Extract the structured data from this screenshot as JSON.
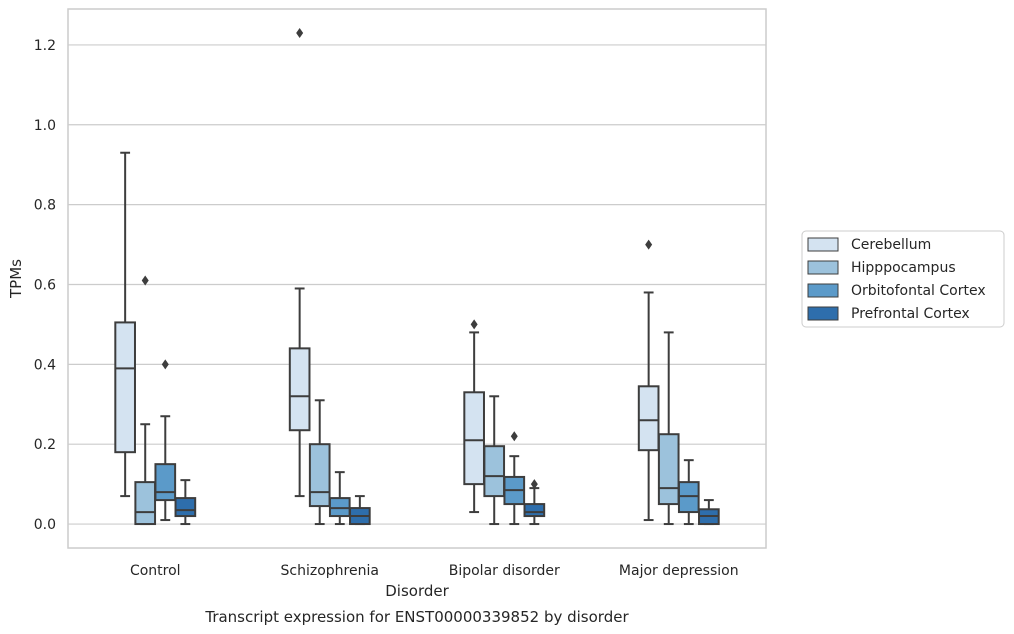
{
  "chart_data": {
    "type": "box",
    "caption": "Transcript expression for ENST00000339852 by disorder",
    "xlabel": "Disorder",
    "ylabel": "TPMs",
    "ylim": [
      -0.06,
      1.29
    ],
    "yticks": [
      "0.0",
      "0.2",
      "0.4",
      "0.6",
      "0.8",
      "1.0",
      "1.2"
    ],
    "ytick_values": [
      0.0,
      0.2,
      0.4,
      0.6,
      0.8,
      1.0,
      1.2
    ],
    "grid": "horizontal",
    "legend_position": "right",
    "categories": [
      "Control",
      "Schizophrenia",
      "Bipolar disorder",
      "Major depression"
    ],
    "series": [
      {
        "name": "Cerebellum",
        "color": "#d4e3f1",
        "boxes": [
          {
            "whislo": 0.07,
            "q1": 0.18,
            "med": 0.39,
            "q3": 0.505,
            "whishi": 0.93,
            "fliers": []
          },
          {
            "whislo": 0.07,
            "q1": 0.235,
            "med": 0.32,
            "q3": 0.44,
            "whishi": 0.59,
            "fliers": [
              1.23
            ]
          },
          {
            "whislo": 0.03,
            "q1": 0.1,
            "med": 0.21,
            "q3": 0.33,
            "whishi": 0.48,
            "fliers": [
              0.5
            ]
          },
          {
            "whislo": 0.01,
            "q1": 0.185,
            "med": 0.26,
            "q3": 0.345,
            "whishi": 0.58,
            "fliers": [
              0.7
            ]
          }
        ]
      },
      {
        "name": "Hipppocampus",
        "color": "#9cc2dc",
        "boxes": [
          {
            "whislo": 0.0,
            "q1": 0.0,
            "med": 0.03,
            "q3": 0.105,
            "whishi": 0.25,
            "fliers": [
              0.61
            ]
          },
          {
            "whislo": 0.0,
            "q1": 0.045,
            "med": 0.08,
            "q3": 0.2,
            "whishi": 0.31,
            "fliers": []
          },
          {
            "whislo": 0.0,
            "q1": 0.07,
            "med": 0.12,
            "q3": 0.195,
            "whishi": 0.32,
            "fliers": []
          },
          {
            "whislo": 0.0,
            "q1": 0.05,
            "med": 0.09,
            "q3": 0.225,
            "whishi": 0.48,
            "fliers": []
          }
        ]
      },
      {
        "name": "Orbitofontal Cortex",
        "color": "#5b9ac9",
        "boxes": [
          {
            "whislo": 0.01,
            "q1": 0.06,
            "med": 0.08,
            "q3": 0.15,
            "whishi": 0.27,
            "fliers": [
              0.4
            ]
          },
          {
            "whislo": 0.0,
            "q1": 0.02,
            "med": 0.04,
            "q3": 0.065,
            "whishi": 0.13,
            "fliers": []
          },
          {
            "whislo": 0.0,
            "q1": 0.05,
            "med": 0.085,
            "q3": 0.118,
            "whishi": 0.17,
            "fliers": [
              0.22
            ]
          },
          {
            "whislo": 0.0,
            "q1": 0.03,
            "med": 0.07,
            "q3": 0.105,
            "whishi": 0.16,
            "fliers": []
          }
        ]
      },
      {
        "name": "Prefrontal Cortex",
        "color": "#2e6eac",
        "boxes": [
          {
            "whislo": 0.0,
            "q1": 0.02,
            "med": 0.035,
            "q3": 0.065,
            "whishi": 0.11,
            "fliers": []
          },
          {
            "whislo": 0.0,
            "q1": 0.0,
            "med": 0.02,
            "q3": 0.04,
            "whishi": 0.07,
            "fliers": []
          },
          {
            "whislo": 0.0,
            "q1": 0.02,
            "med": 0.03,
            "q3": 0.05,
            "whishi": 0.09,
            "fliers": [
              0.1
            ]
          },
          {
            "whislo": 0.0,
            "q1": 0.0,
            "med": 0.02,
            "q3": 0.037,
            "whishi": 0.06,
            "fliers": []
          }
        ]
      }
    ]
  }
}
